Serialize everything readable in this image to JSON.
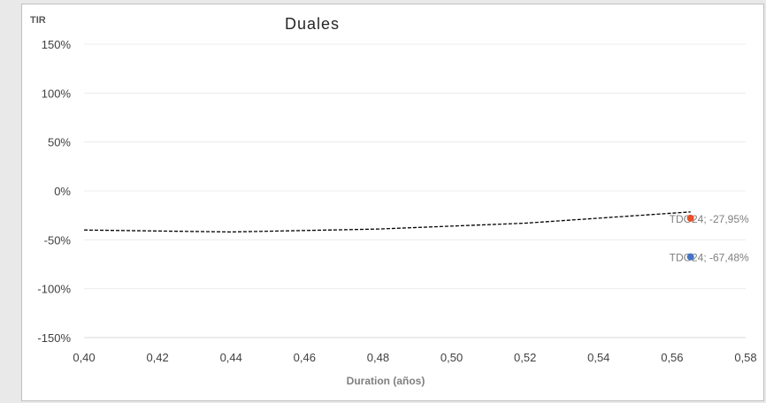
{
  "chart_data": {
    "type": "scatter",
    "title": "Duales",
    "ylabel": "TIR",
    "xlabel": "Duration (años)",
    "xlim": [
      0.4,
      0.58
    ],
    "ylim": [
      -150,
      150
    ],
    "x_ticks": [
      "0,40",
      "0,42",
      "0,44",
      "0,46",
      "0,48",
      "0,50",
      "0,52",
      "0,54",
      "0,56",
      "0,58"
    ],
    "y_ticks": [
      "150%",
      "100%",
      "50%",
      "0%",
      "-50%",
      "-100%",
      "-150%"
    ],
    "grid": true,
    "series": [
      {
        "points": [
          {
            "x": 0.565,
            "y": -27.95,
            "label": "TDG24; -27,95%",
            "color": "#e8502a"
          },
          {
            "x": 0.565,
            "y": -67.48,
            "label": "TDG24; -67,48%",
            "color": "#4472c4"
          }
        ]
      }
    ],
    "trendline": {
      "style": "dashed",
      "color": "#000000",
      "points": [
        {
          "x": 0.4,
          "y": -40.0
        },
        {
          "x": 0.44,
          "y": -42.0
        },
        {
          "x": 0.48,
          "y": -39.0
        },
        {
          "x": 0.52,
          "y": -33.0
        },
        {
          "x": 0.565,
          "y": -21.5
        }
      ]
    }
  }
}
